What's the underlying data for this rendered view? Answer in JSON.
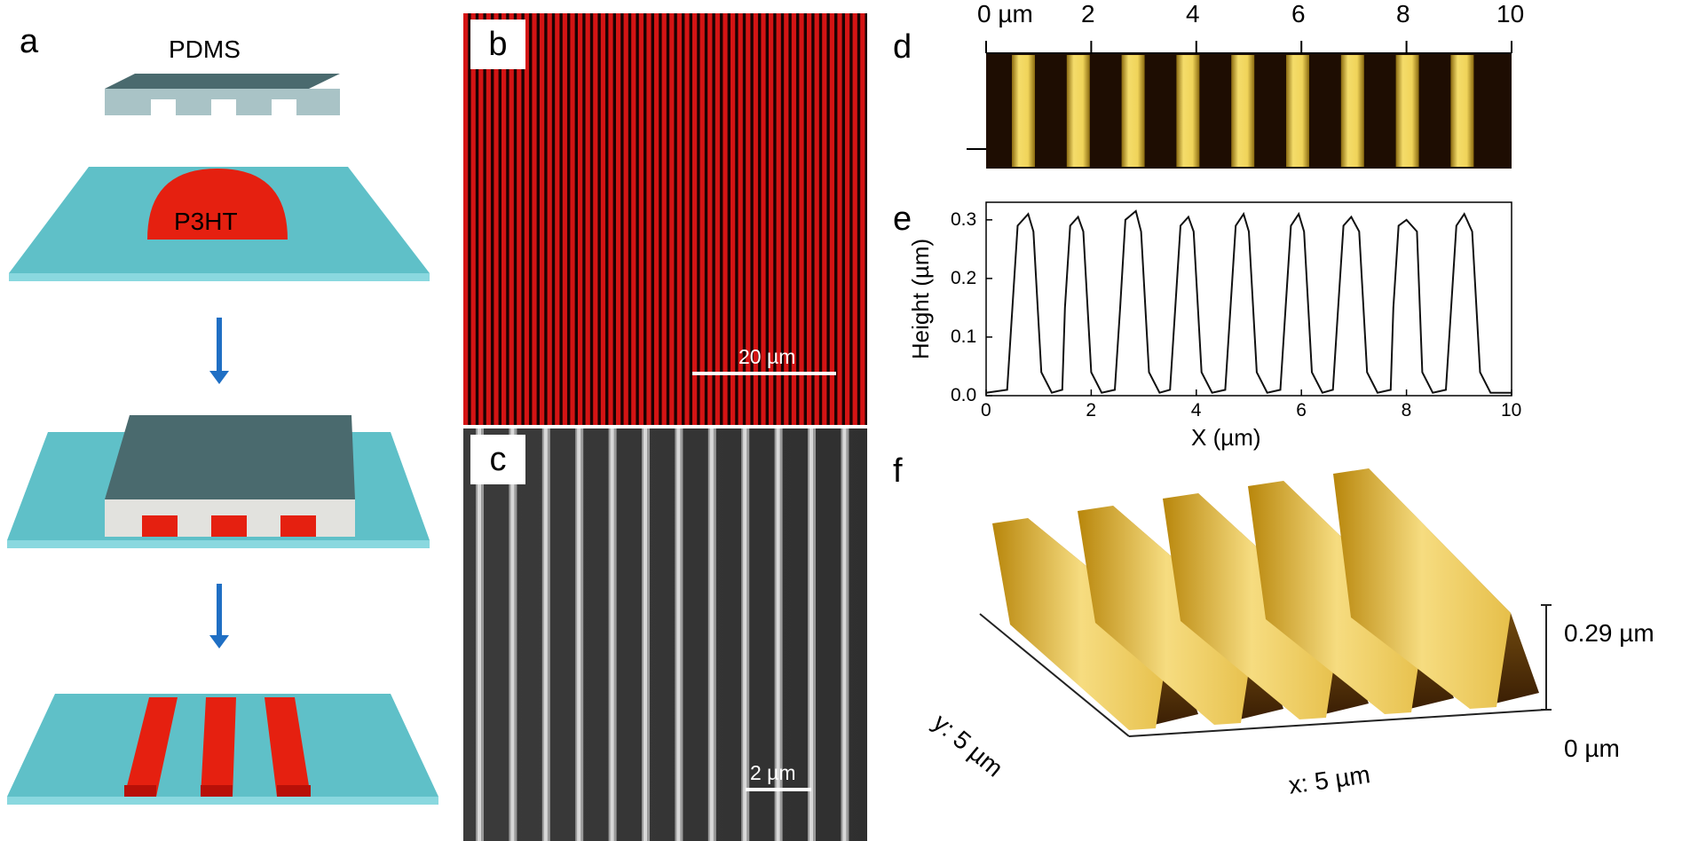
{
  "panels": {
    "a": {
      "label": "a",
      "pdms_label": "PDMS",
      "p3ht_label": "P3HT",
      "colors": {
        "substrate": "#5fc0c8",
        "substrate_edge": "#7fd6dc",
        "stamp_top": "#4a6a6e",
        "stamp_side": "#a9c3c6",
        "polymer": "#e52010"
      }
    },
    "b": {
      "label": "b",
      "scalebar": "20 µm",
      "image_color": "#c01010"
    },
    "c": {
      "label": "c",
      "scalebar": "2 µm"
    },
    "d": {
      "label": "d",
      "ticks": [
        "0 µm",
        "2",
        "4",
        "6",
        "8",
        "10"
      ]
    },
    "e": {
      "label": "e"
    },
    "f": {
      "label": "f",
      "z_top": "0.29 µm",
      "z_bottom": "0 µm",
      "y_axis": "y: 5 µm",
      "x_axis": "x: 5 µm"
    }
  },
  "chart_data": {
    "type": "line",
    "xlabel": "X (µm)",
    "ylabel": "Height (µm)",
    "xlim": [
      0,
      10
    ],
    "ylim": [
      0,
      0.33
    ],
    "xticks": [
      "0",
      "2",
      "4",
      "6",
      "8",
      "10"
    ],
    "yticks": [
      "0.0",
      "0.1",
      "0.2",
      "0.3"
    ],
    "x": [
      0,
      0.4,
      0.5,
      0.6,
      0.8,
      0.9,
      1.05,
      1.25,
      1.45,
      1.5,
      1.6,
      1.75,
      1.85,
      2.0,
      2.2,
      2.45,
      2.55,
      2.65,
      2.85,
      2.95,
      3.1,
      3.3,
      3.5,
      3.6,
      3.7,
      3.85,
      3.95,
      4.1,
      4.3,
      4.55,
      4.65,
      4.75,
      4.9,
      5.0,
      5.15,
      5.35,
      5.6,
      5.7,
      5.8,
      5.95,
      6.05,
      6.2,
      6.4,
      6.6,
      6.7,
      6.8,
      6.95,
      7.1,
      7.25,
      7.45,
      7.7,
      7.75,
      7.85,
      8.0,
      8.2,
      8.3,
      8.5,
      8.75,
      8.85,
      8.95,
      9.1,
      9.25,
      9.4,
      9.6,
      10.0
    ],
    "y": [
      0.005,
      0.01,
      0.15,
      0.29,
      0.31,
      0.28,
      0.04,
      0.005,
      0.01,
      0.15,
      0.29,
      0.305,
      0.28,
      0.04,
      0.005,
      0.01,
      0.15,
      0.3,
      0.315,
      0.28,
      0.04,
      0.005,
      0.01,
      0.15,
      0.29,
      0.305,
      0.28,
      0.04,
      0.005,
      0.01,
      0.15,
      0.29,
      0.31,
      0.28,
      0.04,
      0.005,
      0.01,
      0.15,
      0.29,
      0.31,
      0.28,
      0.04,
      0.005,
      0.01,
      0.15,
      0.29,
      0.305,
      0.28,
      0.04,
      0.005,
      0.01,
      0.15,
      0.29,
      0.3,
      0.28,
      0.04,
      0.005,
      0.01,
      0.15,
      0.29,
      0.31,
      0.28,
      0.04,
      0.005,
      0.005
    ]
  }
}
